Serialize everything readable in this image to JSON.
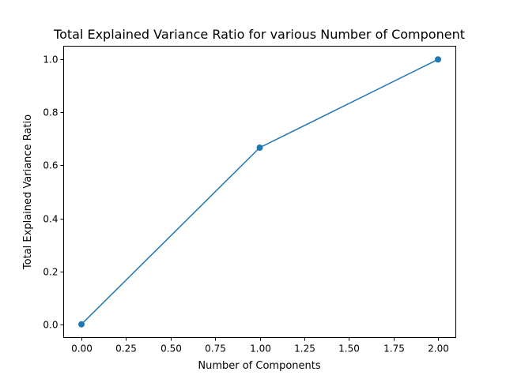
{
  "chart_data": {
    "type": "line",
    "title": "Total Explained Variance Ratio for various Number of Component",
    "xlabel": "Number of Components",
    "ylabel": "Total Explained Variance Ratio",
    "x": [
      0,
      1,
      2
    ],
    "series": [
      {
        "values": [
          0.0,
          0.667,
          1.0
        ],
        "color": "#1f77b4",
        "marker": "circle"
      }
    ],
    "xlim": [
      -0.1,
      2.1
    ],
    "ylim": [
      -0.05,
      1.05
    ],
    "xticks": [
      0.0,
      0.25,
      0.5,
      0.75,
      1.0,
      1.25,
      1.5,
      1.75,
      2.0
    ],
    "xtick_labels": [
      "0.00",
      "0.25",
      "0.50",
      "0.75",
      "1.00",
      "1.25",
      "1.50",
      "1.75",
      "2.00"
    ],
    "yticks": [
      0.0,
      0.2,
      0.4,
      0.6,
      0.8,
      1.0
    ],
    "ytick_labels": [
      "0.0",
      "0.2",
      "0.4",
      "0.6",
      "0.8",
      "1.0"
    ],
    "grid": false,
    "legend": false
  }
}
